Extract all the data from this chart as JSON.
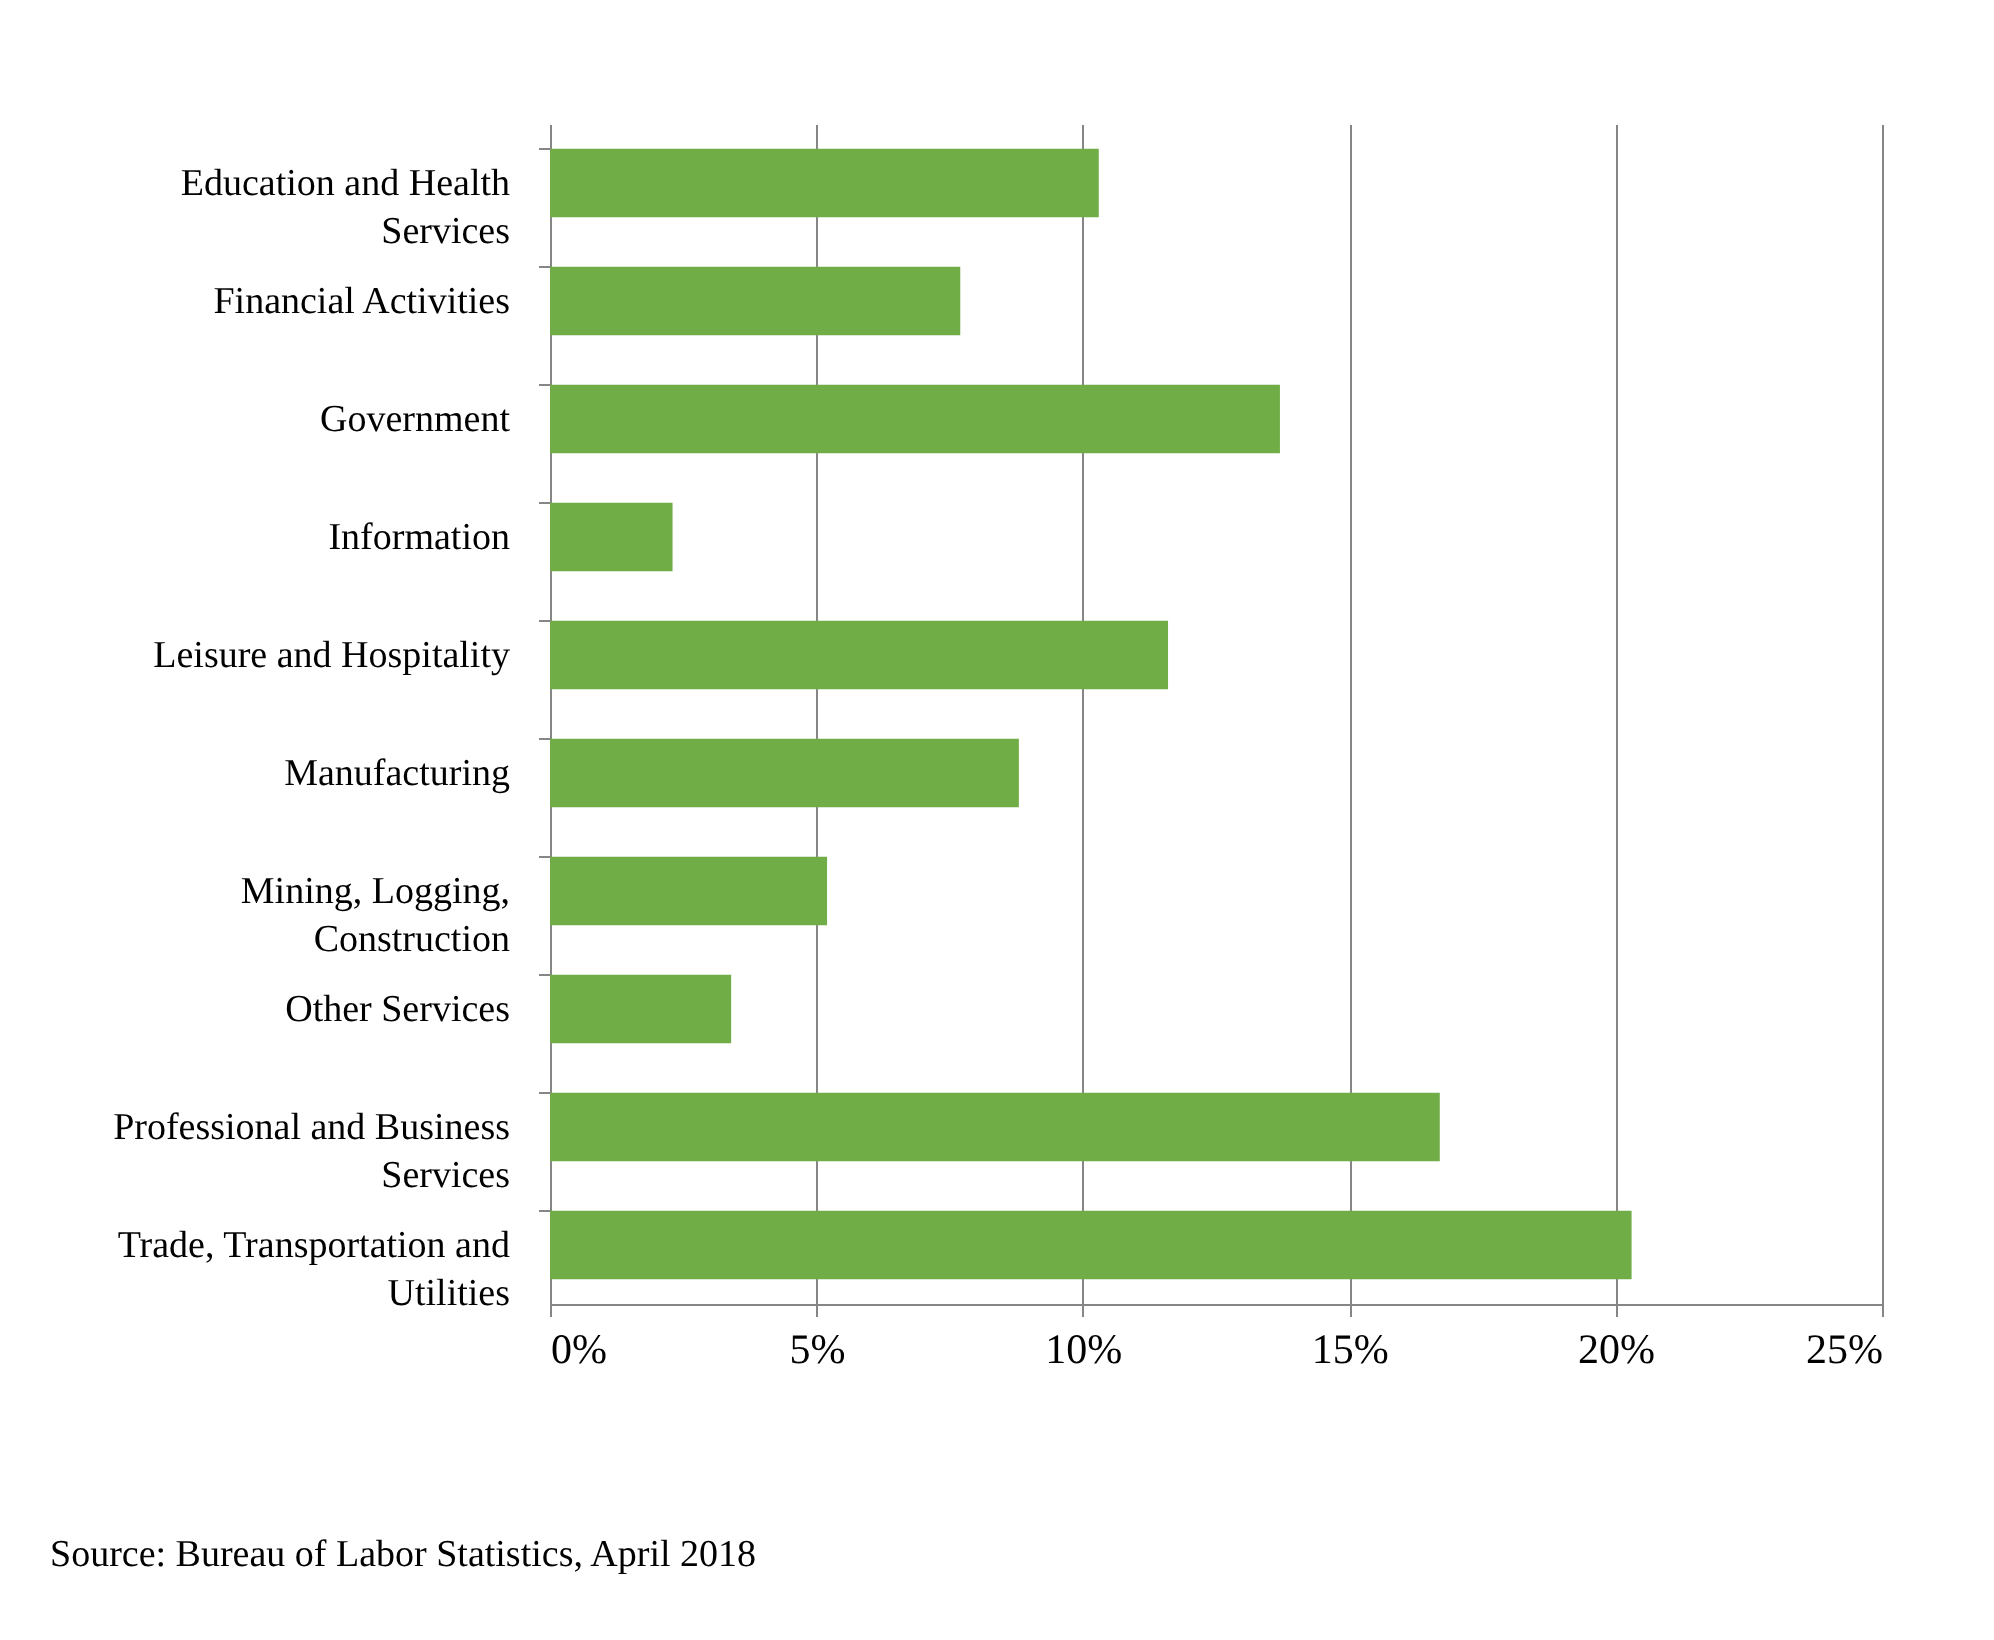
{
  "chart_data": {
    "type": "bar",
    "orientation": "horizontal",
    "categories": [
      "Education and Health Services",
      "Financial Activities",
      "Government",
      "Information",
      "Leisure and Hospitality",
      "Manufacturing",
      "Mining, Logging, Construction",
      "Other Services",
      "Professional and Business Services",
      "Trade, Transportation and Utilities"
    ],
    "values": [
      10.3,
      7.7,
      13.7,
      2.3,
      11.6,
      8.8,
      5.2,
      3.4,
      16.7,
      20.3
    ],
    "color": "#70ad47",
    "xlim": [
      0,
      25
    ],
    "xticks": [
      {
        "value": 0,
        "label": "0%"
      },
      {
        "value": 5,
        "label": "5%"
      },
      {
        "value": 10,
        "label": "10%"
      },
      {
        "value": 15,
        "label": "15%"
      },
      {
        "value": 20,
        "label": "20%"
      },
      {
        "value": 25,
        "label": "25%"
      }
    ],
    "grid": "x",
    "annotations": [
      "Source: Bureau of Labor Statistics, April 2018"
    ]
  }
}
